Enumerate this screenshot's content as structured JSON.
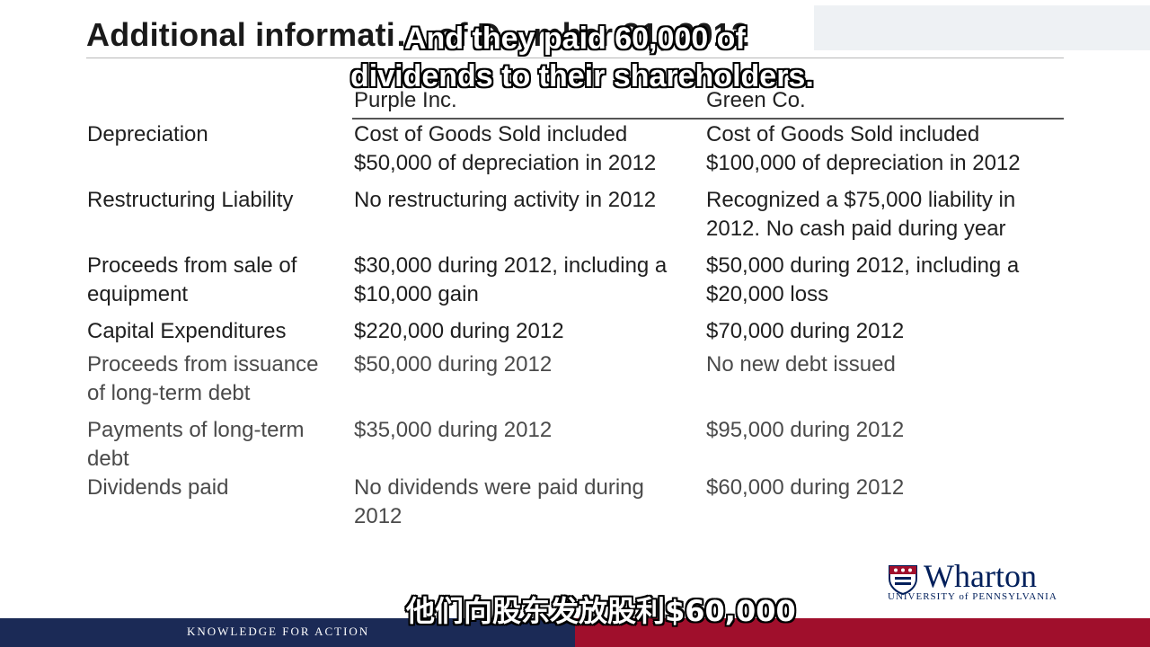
{
  "slide": {
    "title": "Additional informati… of D…mber 31, 2012",
    "columns": {
      "purple": "Purple Inc.",
      "green": "Green Co."
    },
    "rows": [
      {
        "label": [
          "Depreciation"
        ],
        "purple": [
          "Cost of Goods Sold included",
          "$50,000 of depreciation in 2012"
        ],
        "green": [
          "Cost of Goods Sold included",
          "$100,000 of depreciation in 2012"
        ]
      },
      {
        "label": [
          "Restructuring Liability"
        ],
        "purple": [
          "No restructuring activity in 2012"
        ],
        "green": [
          "Recognized a $75,000 liability in",
          "2012.  No cash paid during year"
        ]
      },
      {
        "label": [
          "Proceeds from sale of",
          "equipment"
        ],
        "purple": [
          "$30,000 during 2012, including a",
          "$10,000 gain"
        ],
        "green": [
          "$50,000 during 2012, including a",
          "$20,000 loss"
        ]
      },
      {
        "label": [
          "Capital Expenditures"
        ],
        "purple": [
          "$220,000 during 2012"
        ],
        "green": [
          "$70,000 during 2012"
        ]
      },
      {
        "label": [
          "Proceeds from issuance",
          "of long-term debt"
        ],
        "purple": [
          "$50,000 during 2012"
        ],
        "green": [
          "No new debt issued"
        ]
      },
      {
        "label": [
          "Payments of long-term",
          "debt"
        ],
        "purple": [
          "$35,000 during 2012"
        ],
        "green": [
          "$95,000 during 2012"
        ]
      },
      {
        "label": [
          "Dividends paid"
        ],
        "purple": [
          "No dividends were paid during",
          "2012"
        ],
        "green": [
          "$60,000 during 2012"
        ]
      }
    ]
  },
  "subtitles": {
    "english": [
      "And they paid 60,000 of",
      "dividends to their shareholders."
    ],
    "chinese": "他们向股东发放股利$60,000"
  },
  "branding": {
    "logo_name": "Wharton",
    "logo_subtitle": "UNIVERSITY of PENNSYLVANIA",
    "footer_tagline": "KNOWLEDGE FOR ACTION",
    "logo_icon": "penn-shield-icon",
    "colors": {
      "navy": "#1b2a56",
      "red": "#a00f2c",
      "logo_blue": "#011f5b"
    }
  }
}
